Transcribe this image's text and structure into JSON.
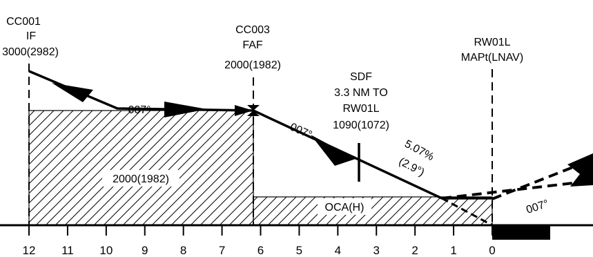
{
  "colors": {
    "ink": "#000000",
    "background": "#ffffff"
  },
  "fixes": {
    "cc001": {
      "name": "CC001",
      "type": "IF",
      "altitude": "3000(2982)"
    },
    "cc003": {
      "name": "CC003",
      "type": "FAF",
      "altitude": "2000(1982)"
    },
    "sdf": {
      "name": "SDF",
      "distance": "3.3 NM TO",
      "runway": "RW01L",
      "altitude": "1090(1072)"
    },
    "rw01l": {
      "name": "RW01L",
      "type": "MAPt(LNAV)"
    }
  },
  "segments": {
    "initial_course": "007°",
    "final_course": "007°",
    "missed_course": "007°",
    "gradient": "5.07%",
    "angle": "(2.9°)"
  },
  "areas": {
    "intermediate_min": "2000(1982)",
    "oca": "OCA(H)"
  },
  "distance_scale": {
    "ticks": [
      "12",
      "11",
      "10",
      "9",
      "8",
      "7",
      "6",
      "5",
      "4",
      "3",
      "2",
      "1",
      "0"
    ]
  }
}
